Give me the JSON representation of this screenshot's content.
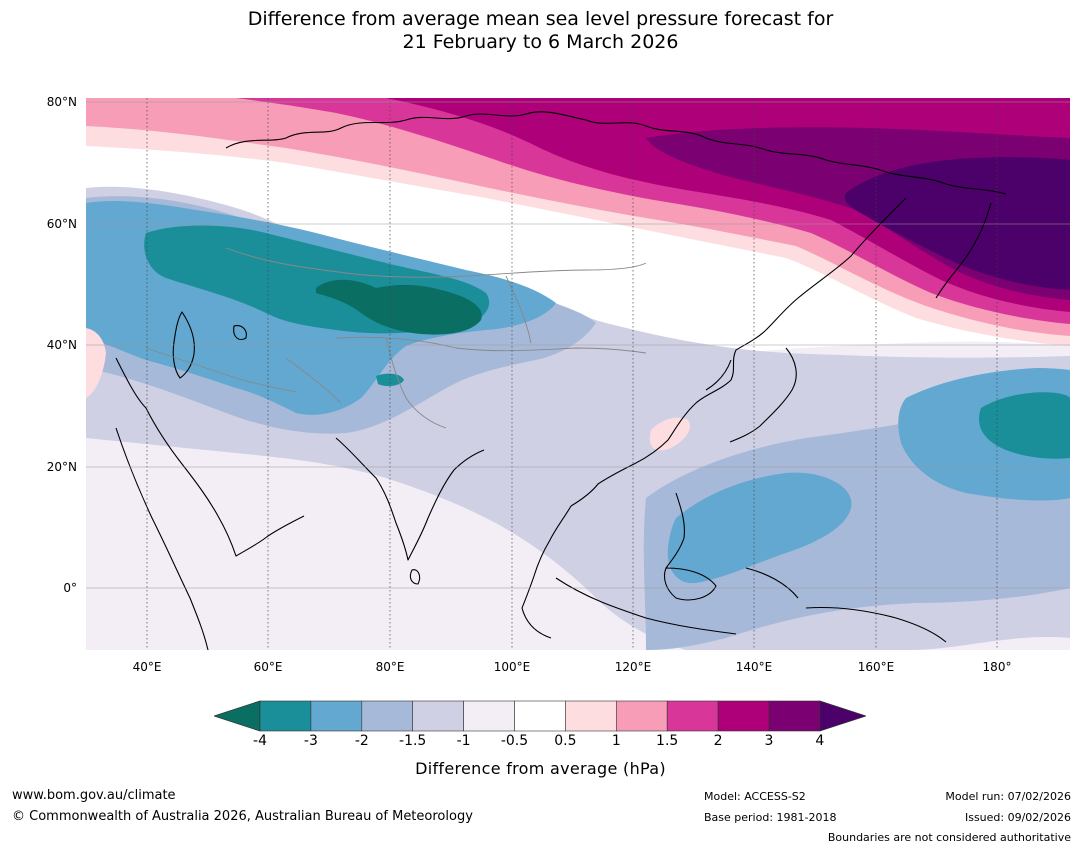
{
  "title": {
    "line1": "Difference from average mean sea level pressure forecast for",
    "line2": "21 February to 6 March 2026"
  },
  "axes": {
    "lat_labels": [
      "80°N",
      "60°N",
      "40°N",
      "20°N",
      "0°"
    ],
    "lon_labels": [
      "40°E",
      "60°E",
      "80°E",
      "100°E",
      "120°E",
      "140°E",
      "160°E",
      "180°"
    ]
  },
  "colorbar": {
    "title": "Difference from average (hPa)",
    "ticks": [
      "-4",
      "-3",
      "-2",
      "-1.5",
      "-1",
      "-0.5",
      "0.5",
      "1",
      "1.5",
      "2",
      "3",
      "4"
    ],
    "colors": [
      "#0b6e63",
      "#1b8f99",
      "#63a8d0",
      "#a7b9d9",
      "#cfd0e4",
      "#f3edf6",
      "#ffffff",
      "#fddde0",
      "#f79db8",
      "#d9369a",
      "#ae0079",
      "#7b0072",
      "#4c006a"
    ]
  },
  "footer": {
    "url": "www.bom.gov.au/climate",
    "copyright": "© Commonwealth of Australia 2026, Australian Bureau of Meteorology",
    "model": "Model: ACCESS-S2",
    "base_period": "Base period: 1981-2018",
    "model_run": "Model run: 07/02/2026",
    "issued": "Issued: 09/02/2026",
    "disclaimer": "Boundaries are not considered authoritative"
  }
}
